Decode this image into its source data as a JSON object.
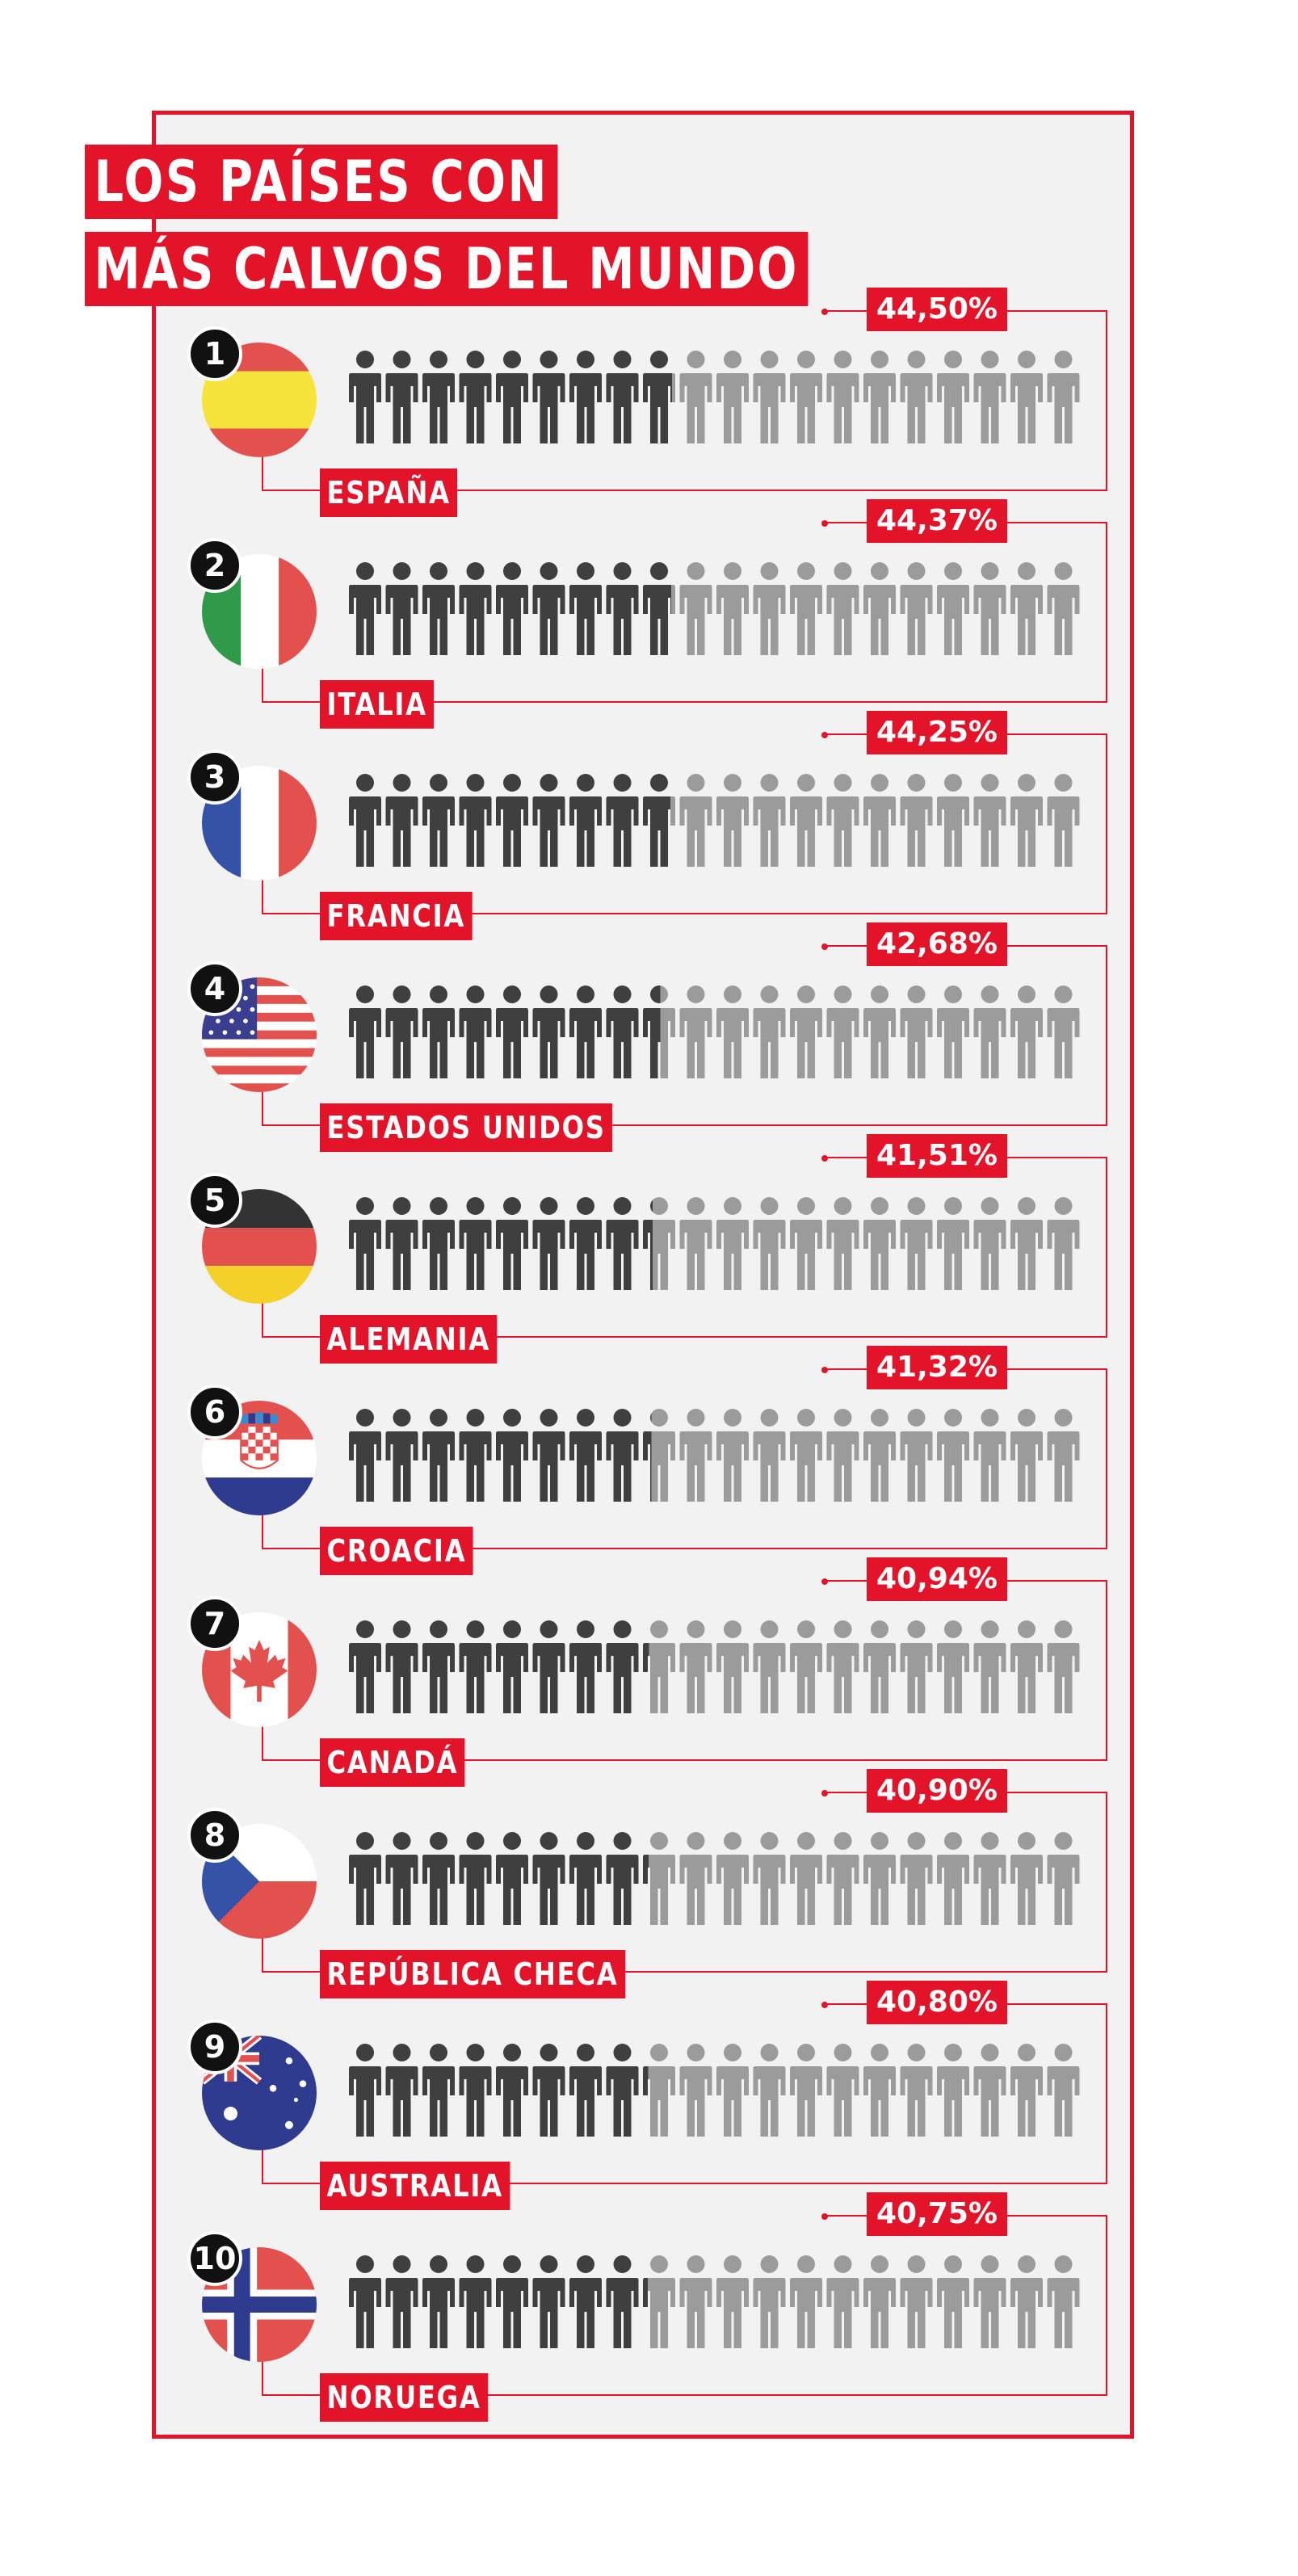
{
  "title": {
    "line1": "LOS PAÍSES CON",
    "line2": "MÁS CALVOS DEL MUNDO"
  },
  "colors": {
    "accent": "#e3132a",
    "bald_icon": "#3f3f3f",
    "other_icon": "#9b9b9b",
    "panel": "#f2f2f2"
  },
  "icons_per_row": 20,
  "chart_data": {
    "type": "bar",
    "unit": "%",
    "categories": [
      "ESPAÑA",
      "ITALIA",
      "FRANCIA",
      "ESTADOS UNIDOS",
      "ALEMANIA",
      "CROACIA",
      "CANADÁ",
      "REPÚBLICA CHECA",
      "AUSTRALIA",
      "NORUEGA"
    ],
    "values": [
      44.5,
      44.37,
      44.25,
      42.68,
      41.51,
      41.32,
      40.94,
      40.9,
      40.8,
      40.75
    ],
    "ylim": [
      0,
      100
    ]
  },
  "countries": [
    {
      "rank": "1",
      "name": "ESPAÑA",
      "pct": "44,50%",
      "flag": "spain-flag"
    },
    {
      "rank": "2",
      "name": "ITALIA",
      "pct": "44,37%",
      "flag": "italy-flag"
    },
    {
      "rank": "3",
      "name": "FRANCIA",
      "pct": "44,25%",
      "flag": "france-flag"
    },
    {
      "rank": "4",
      "name": "ESTADOS UNIDOS",
      "pct": "42,68%",
      "flag": "usa-flag"
    },
    {
      "rank": "5",
      "name": "ALEMANIA",
      "pct": "41,51%",
      "flag": "germany-flag"
    },
    {
      "rank": "6",
      "name": "CROACIA",
      "pct": "41,32%",
      "flag": "croatia-flag"
    },
    {
      "rank": "7",
      "name": "CANADÁ",
      "pct": "40,94%",
      "flag": "canada-flag"
    },
    {
      "rank": "8",
      "name": "REPÚBLICA CHECA",
      "pct": "40,90%",
      "flag": "czech-flag"
    },
    {
      "rank": "9",
      "name": "AUSTRALIA",
      "pct": "40,80%",
      "flag": "australia-flag"
    },
    {
      "rank": "10",
      "name": "NORUEGA",
      "pct": "40,75%",
      "flag": "norway-flag"
    }
  ]
}
